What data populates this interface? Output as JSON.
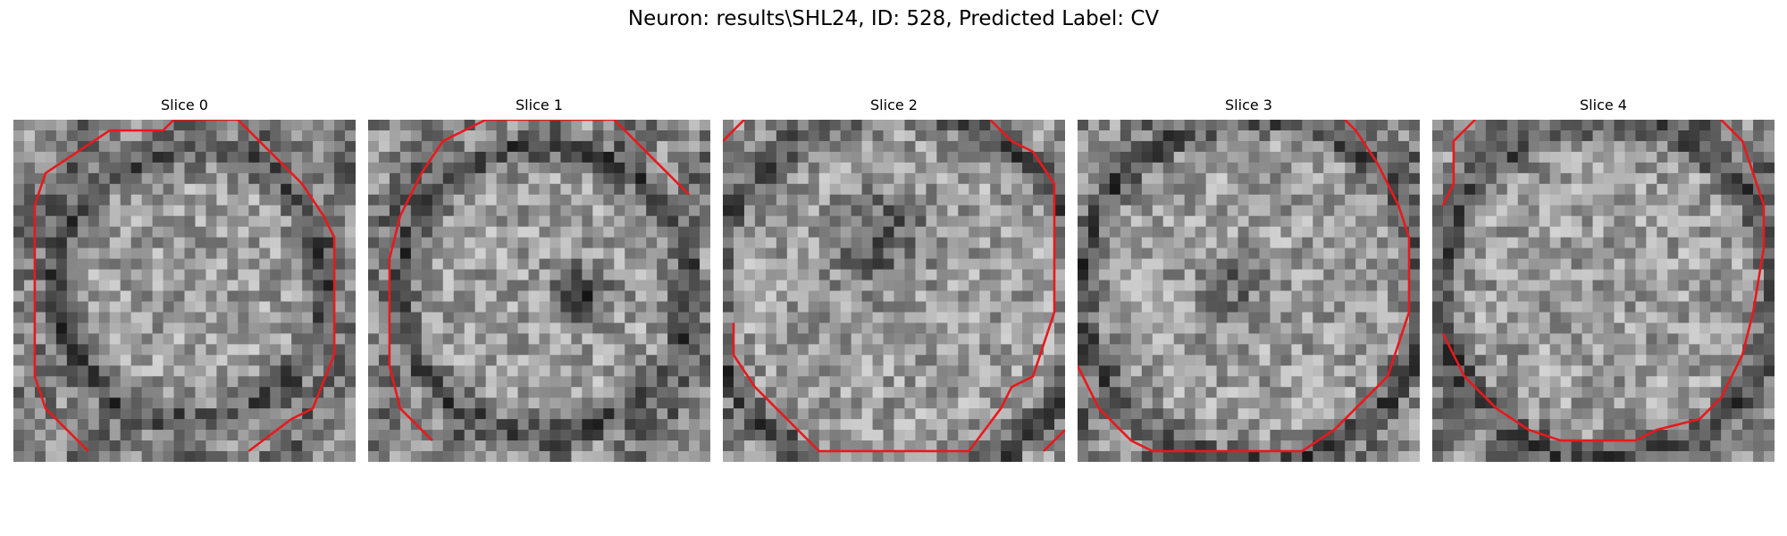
{
  "figure": {
    "title": "Neuron: results\\SHL24, ID: 528, Predicted Label: CV"
  },
  "panels": [
    {
      "title": "Slice 0"
    },
    {
      "title": "Slice 1"
    },
    {
      "title": "Slice 2"
    },
    {
      "title": "Slice 3"
    },
    {
      "title": "Slice 4"
    }
  ],
  "colors": {
    "background": "#ffffff",
    "contour": "#e8191c",
    "colormap": "gray"
  }
}
